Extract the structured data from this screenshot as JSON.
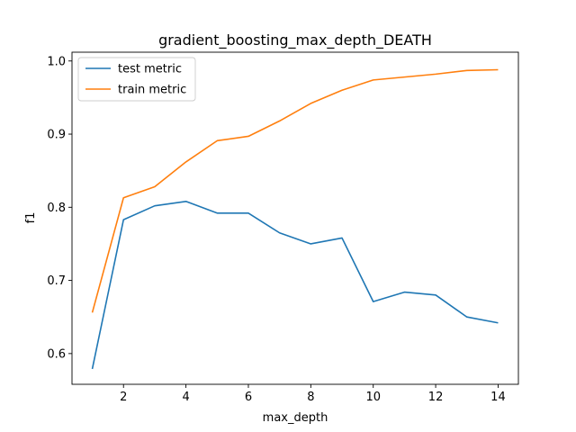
{
  "chart_data": {
    "type": "line",
    "title": "gradient_boosting_max_depth_DEATH",
    "xlabel": "max_depth",
    "ylabel": "f1",
    "x": [
      1,
      2,
      3,
      4,
      5,
      6,
      7,
      8,
      9,
      10,
      11,
      12,
      13,
      14
    ],
    "xlim": [
      0.35,
      14.65
    ],
    "ylim": [
      0.558,
      1.012
    ],
    "xticks": [
      2,
      4,
      6,
      8,
      10,
      12,
      14
    ],
    "xtick_labels": [
      "2",
      "4",
      "6",
      "8",
      "10",
      "12",
      "14"
    ],
    "yticks": [
      0.6,
      0.7,
      0.8,
      0.9,
      1.0
    ],
    "ytick_labels": [
      "0.6",
      "0.7",
      "0.8",
      "0.9",
      "1.0"
    ],
    "grid": false,
    "legend_position": "top-left",
    "series": [
      {
        "name": "test metric",
        "color": "#1f77b4",
        "values": [
          0.579,
          0.783,
          0.802,
          0.808,
          0.792,
          0.792,
          0.765,
          0.75,
          0.758,
          0.671,
          0.684,
          0.68,
          0.65,
          0.642
        ]
      },
      {
        "name": "train metric",
        "color": "#ff7f0e",
        "values": [
          0.656,
          0.813,
          0.828,
          0.862,
          0.891,
          0.897,
          0.918,
          0.942,
          0.96,
          0.974,
          0.978,
          0.982,
          0.987,
          0.988
        ]
      }
    ]
  }
}
